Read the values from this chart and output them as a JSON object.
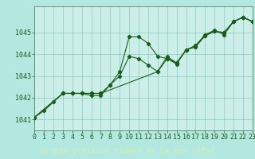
{
  "title": "Graphe pression niveau de la mer (hPa)",
  "bg_color": "#b3e8e0",
  "plot_bg_color": "#cceee8",
  "grid_color": "#88ccbb",
  "line_color": "#1a5c1a",
  "marker_color": "#1a5c1a",
  "xlabel_bg": "#2d6b2d",
  "xlabel_fg": "#cceebb",
  "x_min": 0,
  "x_max": 23,
  "y_min": 1040.5,
  "y_max": 1046.2,
  "yticks": [
    1041,
    1042,
    1043,
    1044,
    1045
  ],
  "xticks": [
    0,
    1,
    2,
    3,
    4,
    5,
    6,
    7,
    8,
    9,
    10,
    11,
    12,
    13,
    14,
    15,
    16,
    17,
    18,
    19,
    20,
    21,
    22,
    23
  ],
  "series1_x": [
    0,
    1,
    2,
    3,
    4,
    5,
    6,
    7,
    8,
    9,
    10,
    11,
    12,
    13,
    14,
    15,
    16,
    17,
    18,
    19,
    20,
    21,
    22,
    23
  ],
  "series1_y": [
    1041.1,
    1041.4,
    1041.8,
    1042.2,
    1042.2,
    1042.2,
    1042.1,
    1042.1,
    1042.6,
    1043.2,
    1044.8,
    1044.8,
    1044.5,
    1043.9,
    1043.8,
    1043.6,
    1044.2,
    1044.4,
    1044.9,
    1045.1,
    1044.9,
    1045.5,
    1045.7,
    1045.5
  ],
  "series2_x": [
    0,
    3,
    4,
    5,
    6,
    7,
    8,
    9,
    10,
    11,
    12,
    13,
    14,
    15,
    16,
    17,
    18,
    19,
    20,
    21,
    22,
    23
  ],
  "series2_y": [
    1041.1,
    1042.2,
    1042.2,
    1042.2,
    1042.2,
    1042.2,
    1042.6,
    1043.0,
    1043.9,
    1043.8,
    1043.5,
    1043.2,
    1043.9,
    1043.6,
    1044.2,
    1044.35,
    1044.85,
    1045.05,
    1045.0,
    1045.5,
    1045.7,
    1045.5
  ],
  "series3_x": [
    0,
    3,
    4,
    5,
    6,
    7,
    13,
    14,
    15,
    16,
    17,
    18,
    19,
    20,
    21,
    22,
    23
  ],
  "series3_y": [
    1041.1,
    1042.2,
    1042.2,
    1042.2,
    1042.2,
    1042.2,
    1043.2,
    1043.8,
    1043.55,
    1044.2,
    1044.35,
    1044.85,
    1045.05,
    1045.0,
    1045.5,
    1045.7,
    1045.5
  ],
  "font_size_tick": 6.0,
  "font_size_title": 6.8,
  "lw": 0.8,
  "ms": 2.2
}
